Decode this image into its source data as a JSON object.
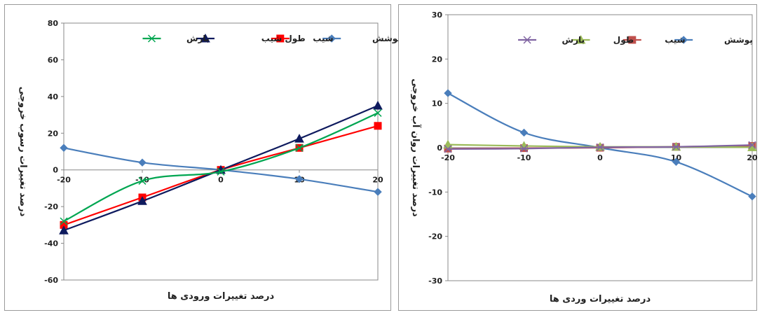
{
  "chart_data": [
    {
      "type": "line",
      "title": "",
      "xlabel": "درصد تغییرات ورودی ها",
      "ylabel": "درصد تغییرات رسوب خروجی",
      "xlim": [
        -20,
        20
      ],
      "ylim": [
        -60,
        80
      ],
      "x_ticks": [
        -20,
        -10,
        0,
        10,
        20
      ],
      "y_ticks": [
        -60,
        -40,
        -20,
        0,
        20,
        40,
        60,
        80
      ],
      "x_tick_labels": [
        "-20",
        "-10",
        "0",
        "10",
        "20"
      ],
      "y_tick_labels": [
        "-60",
        "-40",
        "-20",
        "0",
        "20",
        "40",
        "60",
        "80"
      ],
      "grid": false,
      "legend_position": "top",
      "x": [
        -20,
        -10,
        0,
        10,
        20
      ],
      "series": [
        {
          "name": "پوشش",
          "values": [
            12,
            4,
            0,
            -5,
            -12
          ],
          "color": "#4a7ebb",
          "marker": "diamond"
        },
        {
          "name": "شیب",
          "values": [
            -30,
            -15,
            0,
            12,
            24
          ],
          "color": "#ff0000",
          "marker": "square"
        },
        {
          "name": "طول شیب",
          "values": [
            -33,
            -17,
            0,
            17,
            35
          ],
          "color": "#0e1a5e",
          "marker": "triangle"
        },
        {
          "name": "بارش",
          "values": [
            -28,
            -6,
            -1,
            12,
            31
          ],
          "color": "#00a651",
          "marker": "x"
        }
      ]
    },
    {
      "type": "line",
      "title": "",
      "xlabel": "درصد تغییرات وردی ها",
      "ylabel": "درصد تغییرات روان آب خروجی",
      "xlim": [
        -20,
        20
      ],
      "ylim": [
        -30,
        30
      ],
      "x_ticks": [
        -20,
        -10,
        0,
        10,
        20
      ],
      "y_ticks": [
        -30,
        -20,
        -10,
        0,
        10,
        20,
        30
      ],
      "x_tick_labels": [
        "-20",
        "-10",
        "0",
        "10",
        "20"
      ],
      "y_tick_labels": [
        "-30",
        "-20",
        "-10",
        "0",
        "10",
        "20",
        "30"
      ],
      "grid": false,
      "legend_position": "top",
      "x": [
        -20,
        -10,
        0,
        10,
        20
      ],
      "series": [
        {
          "name": "پوشش",
          "values": [
            12.3,
            3.4,
            0,
            -3.2,
            -11
          ],
          "color": "#4a7ebb",
          "marker": "diamond"
        },
        {
          "name": "شیب",
          "values": [
            -0.2,
            -0.1,
            0,
            0.2,
            0.4
          ],
          "color": "#c0504d",
          "marker": "square"
        },
        {
          "name": "طول",
          "values": [
            0.7,
            0.4,
            0.2,
            0.2,
            0.1
          ],
          "color": "#9bbb59",
          "marker": "triangle"
        },
        {
          "name": "بارش",
          "values": [
            -0.3,
            -0.2,
            0.1,
            0.2,
            0.6
          ],
          "color": "#8064a2",
          "marker": "x"
        }
      ]
    }
  ]
}
